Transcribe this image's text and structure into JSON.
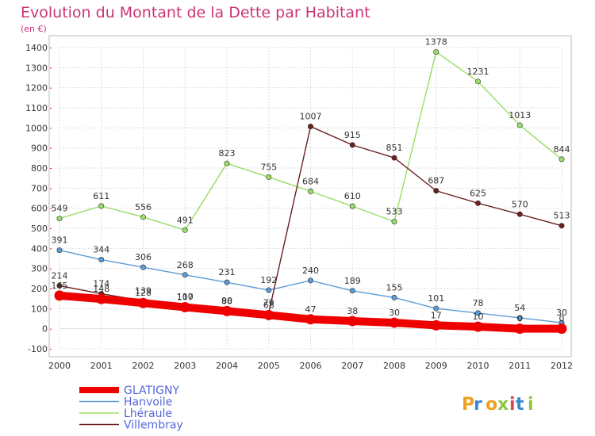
{
  "chart_data": {
    "type": "line",
    "title": "Evolution du Montant de la Dette par Habitant",
    "subtitle": "(en €)",
    "x": [
      "2000",
      "2001",
      "2002",
      "2003",
      "2004",
      "2005",
      "2006",
      "2007",
      "2008",
      "2009",
      "2010",
      "2011",
      "2012"
    ],
    "ylim": [
      -100,
      1400
    ],
    "yticks": [
      -100,
      0,
      100,
      200,
      300,
      400,
      500,
      600,
      700,
      800,
      900,
      1000,
      1100,
      1200,
      1300,
      1400
    ],
    "grid": true,
    "legend_position": "bottom-left",
    "series": [
      {
        "name": "GLATIGNY",
        "color": "#ee0000",
        "emphasis": true,
        "values": [
          165,
          148,
          128,
          107,
          88,
          68,
          47,
          38,
          30,
          17,
          10,
          0,
          0
        ],
        "labels": [
          "165",
          "148",
          "128",
          "107",
          "88",
          "68",
          "47",
          "38",
          "30",
          "17",
          "10",
          "0",
          "0"
        ]
      },
      {
        "name": "Hanvoile",
        "color": "#5b9bd5",
        "values": [
          391,
          344,
          306,
          268,
          231,
          192,
          240,
          189,
          155,
          101,
          78,
          54,
          30
        ],
        "labels": [
          "391",
          "344",
          "306",
          "268",
          "231",
          "192",
          "240",
          "189",
          "155",
          "101",
          "78",
          "54",
          "30"
        ]
      },
      {
        "name": "Lhéraule",
        "color": "#99dd66",
        "values": [
          549,
          611,
          556,
          491,
          823,
          755,
          684,
          610,
          533,
          1378,
          1231,
          1013,
          844
        ],
        "labels": [
          "549",
          "611",
          "556",
          "491",
          "823",
          "755",
          "684",
          "610",
          "533",
          "1378",
          "1231",
          "1013",
          "844"
        ]
      },
      {
        "name": "Villembray",
        "color": "#6b1f1f",
        "values": [
          214,
          174,
          139,
          110,
          90,
          79,
          1007,
          915,
          851,
          687,
          625,
          570,
          513
        ],
        "labels": [
          "214",
          "174",
          "139",
          "110",
          "90",
          "79",
          "1007",
          "915",
          "851",
          "687",
          "625",
          "570",
          "513"
        ]
      }
    ]
  },
  "brand": {
    "logo_text": "Proxiti"
  }
}
